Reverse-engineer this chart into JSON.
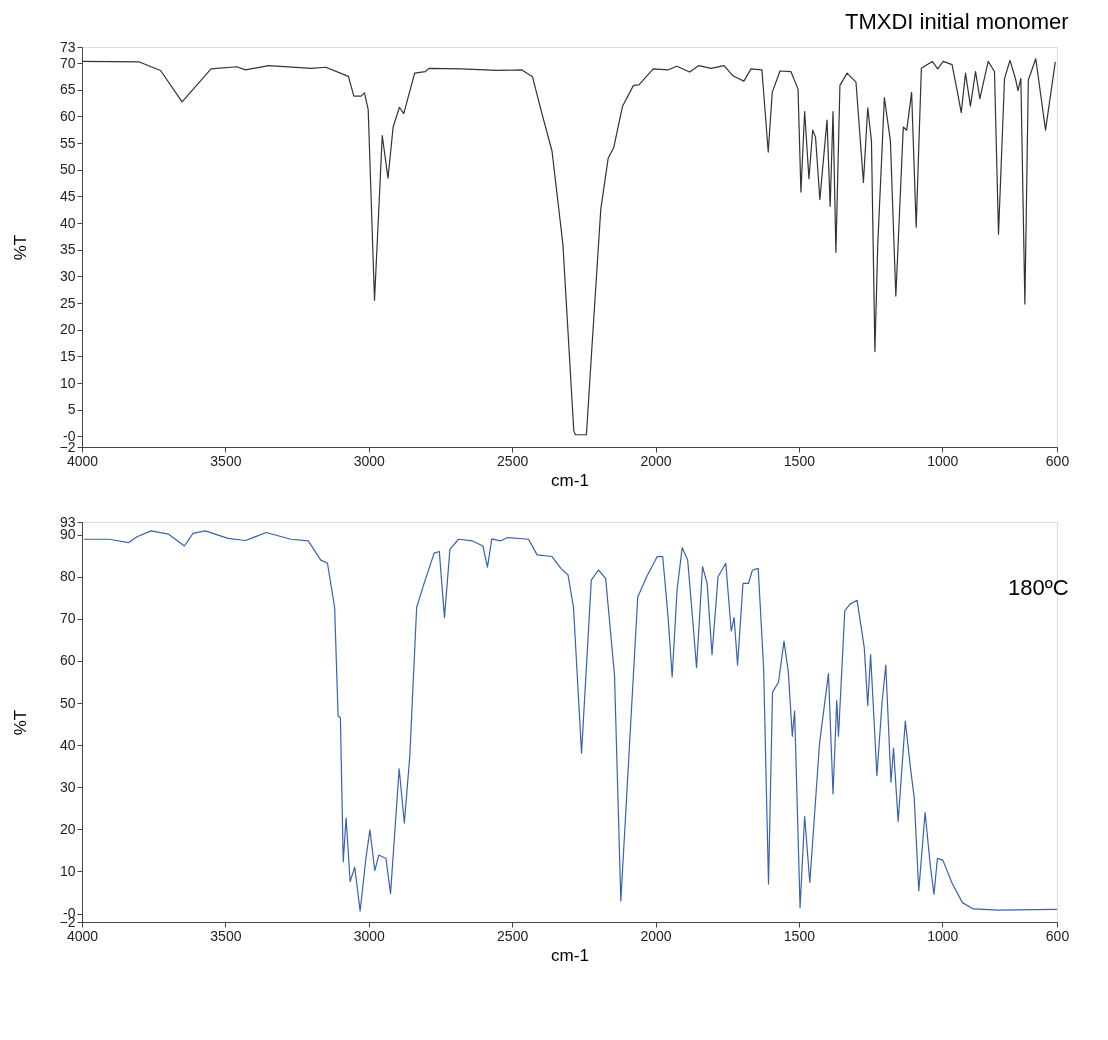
{
  "chart_data": [
    {
      "type": "line",
      "title": "TMXDI initial monomer",
      "xlabel": "cm-1",
      "ylabel": "%T",
      "xlim": [
        4000,
        600
      ],
      "xticks": [
        4000,
        3500,
        3000,
        2500,
        2000,
        1500,
        1000,
        600
      ],
      "ylim": [
        -2,
        73
      ],
      "yticks": [
        73,
        70,
        65,
        60,
        55,
        50,
        45,
        40,
        35,
        30,
        25,
        20,
        15,
        10,
        5,
        {
          "value": 0,
          "label": "-0"
        },
        -2
      ],
      "x": [
        4000,
        3800,
        3726,
        3651,
        3550,
        3460,
        3430,
        3350,
        3200,
        3150,
        3071,
        3052,
        3027,
        3015,
        3002,
        2980,
        2965,
        2953,
        2933,
        2915,
        2893,
        2878,
        2840,
        2803,
        2790,
        2678,
        2554,
        2466,
        2429,
        2398,
        2361,
        2323,
        2285,
        2279,
        2241,
        2222,
        2191,
        2165,
        2146,
        2115,
        2077,
        2058,
        2008,
        1957,
        1926,
        1881,
        1850,
        1806,
        1761,
        1730,
        1692,
        1667,
        1629,
        1607,
        1593,
        1566,
        1528,
        1503,
        1493,
        1480,
        1465,
        1452,
        1442,
        1427,
        1402,
        1391,
        1381,
        1371,
        1357,
        1332,
        1301,
        1275,
        1260,
        1247,
        1235,
        1225,
        1202,
        1181,
        1162,
        1136,
        1124,
        1107,
        1091,
        1073,
        1035,
        1016,
        997,
        966,
        947,
        934,
        919,
        902,
        884,
        869,
        840,
        818,
        804,
        783,
        764,
        745,
        736,
        726,
        712,
        700,
        674,
        640,
        606
      ],
      "series": [
        {
          "color": "#333333",
          "values": [
            70.3,
            70.2,
            68.6,
            62.7,
            68.9,
            69.3,
            68.7,
            69.5,
            69.0,
            69.2,
            67.5,
            63.8,
            63.8,
            64.4,
            61.3,
            25.5,
            42.5,
            56.4,
            48.4,
            58.0,
            61.7,
            60.5,
            68.1,
            68.4,
            69.0,
            68.9,
            68.6,
            68.7,
            67.4,
            60.9,
            53.5,
            36.0,
            1.0,
            0.3,
            0.3,
            16.5,
            42.5,
            52.2,
            54.1,
            61.9,
            65.8,
            65.9,
            68.9,
            68.7,
            69.4,
            68.3,
            69.5,
            69.0,
            69.5,
            67.6,
            66.6,
            68.9,
            68.7,
            53.3,
            64.5,
            68.5,
            68.4,
            65.1,
            45.8,
            60.9,
            48.3,
            57.4,
            56.1,
            44.4,
            59.3,
            43.1,
            60.9,
            34.5,
            65.8,
            68.1,
            66.4,
            47.6,
            61.6,
            55.4,
            15.9,
            36.0,
            63.5,
            55.4,
            26.3,
            58.0,
            57.4,
            64.5,
            39.2,
            69.0,
            70.3,
            68.9,
            70.3,
            69.7,
            64.5,
            60.7,
            68.1,
            61.9,
            68.4,
            63.3,
            70.3,
            68.4,
            37.9,
            67.1,
            70.5,
            67.1,
            64.8,
            67.1,
            24.8,
            66.8,
            70.8,
            57.4,
            70.2
          ]
        }
      ]
    },
    {
      "type": "line",
      "title": "180ºC",
      "xlabel": "cm-1",
      "ylabel": "%T",
      "xlim": [
        4000,
        600
      ],
      "xticks": [
        4000,
        3500,
        3000,
        2500,
        2000,
        1500,
        1000,
        600
      ],
      "ylim": [
        -2,
        93
      ],
      "yticks": [
        93,
        90,
        80,
        70,
        60,
        50,
        40,
        30,
        20,
        10,
        {
          "value": 0,
          "label": "-0"
        },
        -2
      ],
      "x": [
        3993,
        3905,
        3838,
        3808,
        3759,
        3698,
        3643,
        3613,
        3570,
        3491,
        3430,
        3357,
        3272,
        3211,
        3168,
        3144,
        3119,
        3107,
        3099,
        3089,
        3079,
        3065,
        3049,
        3030,
        3010,
        2996,
        2979,
        2965,
        2940,
        2924,
        2894,
        2876,
        2857,
        2833,
        2809,
        2772,
        2754,
        2736,
        2717,
        2687,
        2638,
        2602,
        2586,
        2571,
        2541,
        2516,
        2443,
        2413,
        2361,
        2330,
        2305,
        2286,
        2258,
        2224,
        2199,
        2174,
        2143,
        2121,
        2097,
        2062,
        2031,
        1994,
        1975,
        1956,
        1942,
        1925,
        1907,
        1888,
        1869,
        1857,
        1836,
        1820,
        1803,
        1782,
        1755,
        1736,
        1726,
        1714,
        1695,
        1676,
        1662,
        1642,
        1623,
        1606,
        1592,
        1571,
        1552,
        1537,
        1523,
        1515,
        1496,
        1480,
        1462,
        1428,
        1397,
        1381,
        1368,
        1362,
        1340,
        1322,
        1297,
        1272,
        1260,
        1250,
        1228,
        1210,
        1197,
        1179,
        1170,
        1154,
        1129,
        1110,
        1098,
        1082,
        1060,
        1042,
        1029,
        1017,
        998,
        967,
        930,
        892,
        805,
        600
      ],
      "series": [
        {
          "color": "#3a62b0",
          "values": [
            88.9,
            88.9,
            88.1,
            89.5,
            90.9,
            90.1,
            87.3,
            90.3,
            90.9,
            89.1,
            88.6,
            90.5,
            88.9,
            88.5,
            84.0,
            83.2,
            72.7,
            46.9,
            46.5,
            12.3,
            22.7,
            7.6,
            11.0,
            0.6,
            13.1,
            19.9,
            10.2,
            13.9,
            13.1,
            4.8,
            34.4,
            21.5,
            37.3,
            72.7,
            78.0,
            85.6,
            86.0,
            70.3,
            86.5,
            88.9,
            88.5,
            87.3,
            82.3,
            89.0,
            88.5,
            89.3,
            88.9,
            85.2,
            84.8,
            82.0,
            80.4,
            72.7,
            38.1,
            79.2,
            81.6,
            79.6,
            56.6,
            3.0,
            32.4,
            75.2,
            80.0,
            84.8,
            84.8,
            70.3,
            56.2,
            76.8,
            86.9,
            84.0,
            68.7,
            58.4,
            82.4,
            78.4,
            61.5,
            80.0,
            83.2,
            67.1,
            70.3,
            59.0,
            78.4,
            78.4,
            81.6,
            82.0,
            58.2,
            7.0,
            52.6,
            55.0,
            64.7,
            57.4,
            42.1,
            48.1,
            1.4,
            23.1,
            7.4,
            40.5,
            57.0,
            28.4,
            50.6,
            42.1,
            71.9,
            73.5,
            74.4,
            63.1,
            49.4,
            61.5,
            32.8,
            50.2,
            59.0,
            31.2,
            39.3,
            21.9,
            45.7,
            34.0,
            27.6,
            5.4,
            24.0,
            11.5,
            4.6,
            13.1,
            12.7,
            7.4,
            2.6,
            1.1,
            0.8,
            1.0
          ]
        }
      ]
    }
  ]
}
